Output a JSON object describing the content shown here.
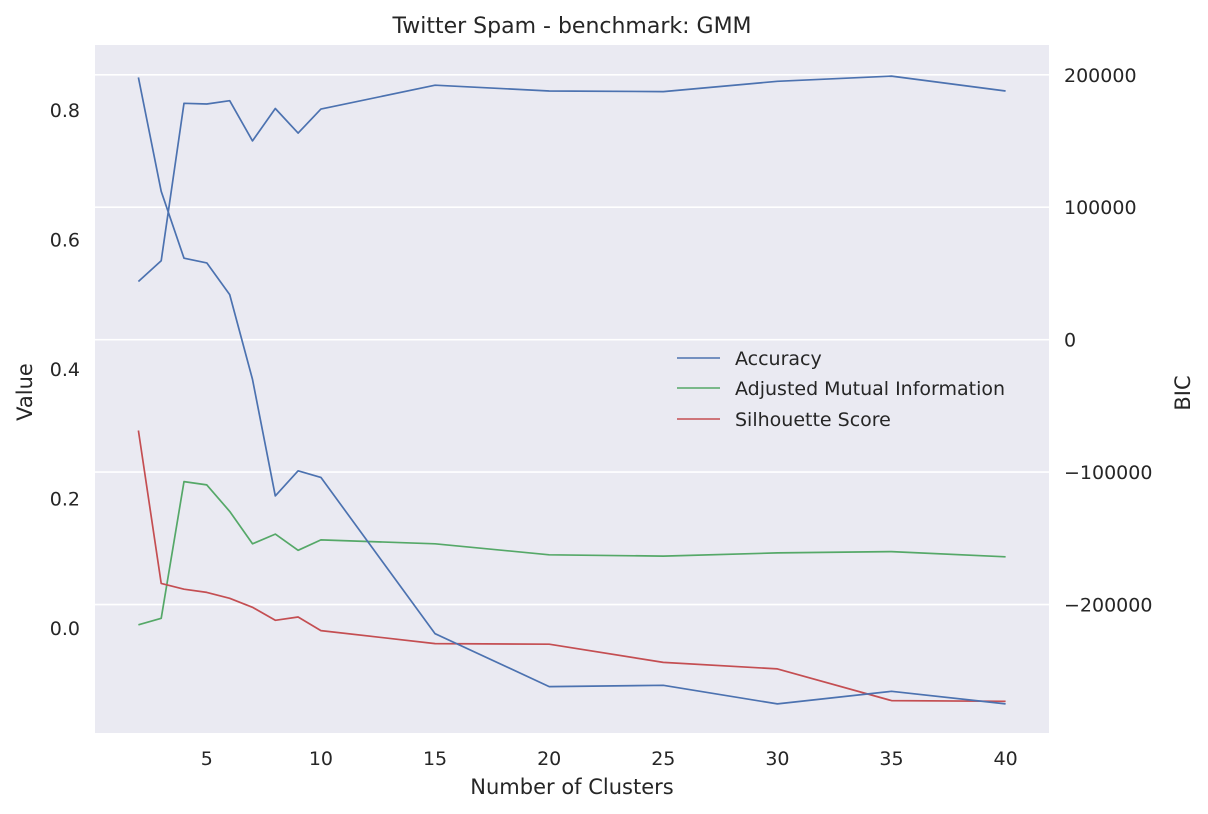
{
  "chart_data": {
    "type": "line",
    "title": "Twitter Spam - benchmark: GMM",
    "xlabel": "Number of Clusters",
    "ylabel": "Value",
    "y2label": "BIC",
    "x": [
      2,
      3,
      4,
      5,
      6,
      7,
      8,
      9,
      10,
      15,
      20,
      25,
      30,
      35,
      40
    ],
    "xticks": [
      5,
      10,
      15,
      20,
      25,
      30,
      35,
      40
    ],
    "xlim": [
      0.1,
      41.9
    ],
    "yticks": [
      0.0,
      0.2,
      0.4,
      0.6,
      0.8
    ],
    "ytick_labels": [
      "0.0",
      "0.2",
      "0.4",
      "0.6",
      "0.8"
    ],
    "ylim": [
      -0.162,
      0.9
    ],
    "y2ticks": [
      200000,
      100000,
      0,
      -100000,
      -200000
    ],
    "y2tick_labels": [
      "200000",
      "100000",
      "0",
      "−100000",
      "−200000"
    ],
    "y2lim": [
      -297000,
      222500
    ],
    "grid": true,
    "legend_position": "center-right",
    "series": [
      {
        "name": "Accuracy",
        "axis": "left",
        "color": "#4c72b0",
        "values": [
          0.535,
          0.567,
          0.81,
          0.809,
          0.814,
          0.752,
          0.802,
          0.764,
          0.801,
          0.838,
          0.829,
          0.828,
          0.844,
          0.852,
          0.829
        ]
      },
      {
        "name": "Adjusted Mutual Information",
        "axis": "left",
        "color": "#55a868",
        "values": [
          0.005,
          0.015,
          0.226,
          0.221,
          0.18,
          0.13,
          0.145,
          0.12,
          0.136,
          0.13,
          0.113,
          0.111,
          0.116,
          0.118,
          0.11
        ]
      },
      {
        "name": "Silhouette Score",
        "axis": "left",
        "color": "#c44e52",
        "values": [
          0.305,
          0.069,
          0.06,
          0.055,
          0.046,
          0.032,
          0.012,
          0.017,
          -0.004,
          -0.024,
          -0.025,
          -0.053,
          -0.063,
          -0.112,
          -0.113
        ]
      },
      {
        "name": "BIC",
        "axis": "right",
        "color": "#4c72b0",
        "values": [
          198000,
          112000,
          61500,
          58000,
          34000,
          -30000,
          -118000,
          -99000,
          -104000,
          -222000,
          -262000,
          -261000,
          -275000,
          -265500,
          -275000
        ]
      }
    ]
  }
}
